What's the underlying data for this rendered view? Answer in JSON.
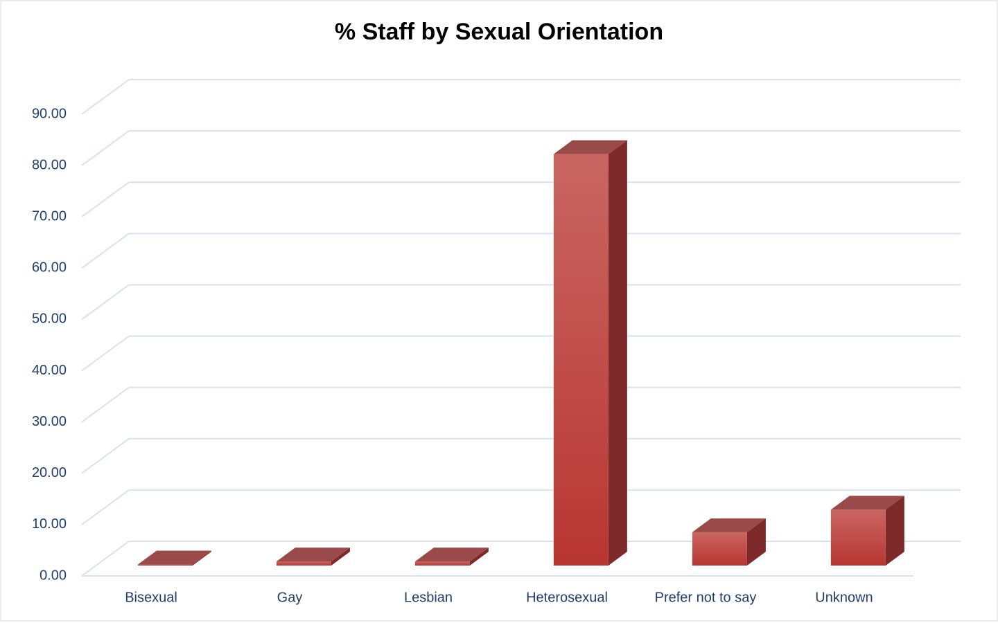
{
  "chart_data": {
    "type": "bar3d",
    "title": "% Staff by Sexual Orientation",
    "categories": [
      "Bisexual",
      "Gay",
      "Lesbian",
      "Heterosexual",
      "Prefer not to say",
      "Unknown"
    ],
    "values": [
      0.2,
      0.8,
      0.8,
      80.2,
      6.5,
      10.9
    ],
    "color": "#c0403b",
    "ylim": [
      0,
      90
    ],
    "yticks": [
      {
        "value": 0,
        "label": "0.00"
      },
      {
        "value": 10,
        "label": "10.00"
      },
      {
        "value": 20,
        "label": "20.00"
      },
      {
        "value": 30,
        "label": "30.00"
      },
      {
        "value": 40,
        "label": "40.00"
      },
      {
        "value": 50,
        "label": "50.00"
      },
      {
        "value": 60,
        "label": "60.00"
      },
      {
        "value": 70,
        "label": "70.00"
      },
      {
        "value": 80,
        "label": "80.00"
      },
      {
        "value": 90,
        "label": "90.00"
      }
    ],
    "grid": true
  }
}
